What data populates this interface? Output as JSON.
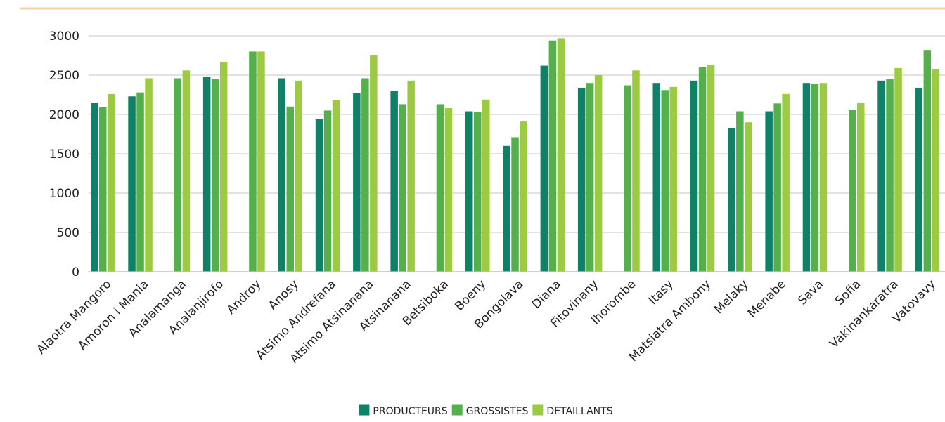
{
  "colors": {
    "top_rule": "#f5d3a8",
    "gridline": "#d9d9d9",
    "axis": "#bfbfbf"
  },
  "chart_data": {
    "type": "bar",
    "title": "",
    "xlabel": "",
    "ylabel": "",
    "ylim": [
      0,
      3000
    ],
    "yticks": [
      0,
      500,
      1000,
      1500,
      2000,
      2500,
      3000
    ],
    "grid": true,
    "legend_position": "bottom-center",
    "categories": [
      "Alaotra Mangoro",
      "Amoron i Mania",
      "Analamanga",
      "Analanjirofo",
      "Androy",
      "Anosy",
      "Atsimo Andrefana",
      "Atsimo Atsinanana",
      "Atsinanana",
      "Betsiboka",
      "Boeny",
      "Bongolava",
      "Diana",
      "Fitovinany",
      "Ihorombe",
      "Itasy",
      "Matsiatra Ambony",
      "Melaky",
      "Menabe",
      "Sava",
      "Sofia",
      "Vakinankaratra",
      "Vatovavy"
    ],
    "series": [
      {
        "name": "PRODUCTEURS",
        "color": "#0f8166",
        "values": [
          2150,
          2230,
          null,
          2480,
          null,
          2460,
          1940,
          2270,
          2300,
          null,
          2040,
          1600,
          2620,
          2340,
          null,
          2400,
          2430,
          1830,
          2040,
          2400,
          null,
          2430,
          2340
        ]
      },
      {
        "name": "GROSSISTES",
        "color": "#53b04a",
        "values": [
          2090,
          2280,
          2460,
          2450,
          2800,
          2100,
          2050,
          2460,
          2130,
          2130,
          2030,
          1710,
          2940,
          2400,
          2370,
          2310,
          2600,
          2040,
          2140,
          2390,
          2060,
          2450,
          2820
        ]
      },
      {
        "name": "DETAILLANTS",
        "color": "#9ccb41",
        "values": [
          2260,
          2460,
          2560,
          2670,
          2800,
          2430,
          2180,
          2750,
          2430,
          2080,
          2190,
          1910,
          2970,
          2500,
          2560,
          2350,
          2630,
          1900,
          2260,
          2400,
          2150,
          2590,
          2580
        ]
      }
    ]
  }
}
